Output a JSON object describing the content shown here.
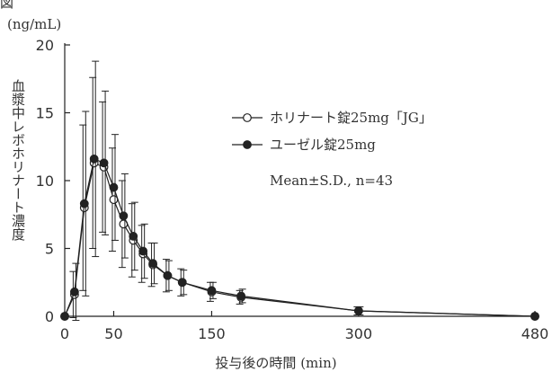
{
  "header": {
    "top_text": "図",
    "unit": "(ng/mL)"
  },
  "chart_data": {
    "type": "line",
    "ylabel": "血漿中レボホリナート濃度",
    "xlabel": "投与後の時間 (min)",
    "y_unit": "(ng/mL)",
    "xlim": [
      0,
      480
    ],
    "ylim": [
      0,
      20
    ],
    "x_ticks": [
      0,
      50,
      150,
      300,
      480
    ],
    "y_ticks": [
      0,
      5,
      10,
      15,
      20
    ],
    "legend_position": "upper-right",
    "grid": false,
    "series": [
      {
        "name": "ホリナート錠25mg「JG」",
        "marker": "open-circle",
        "color": "#222222",
        "points": [
          {
            "x": 0,
            "y": 0.0,
            "sd": 0.0
          },
          {
            "x": 10,
            "y": 1.6,
            "sd": 1.7
          },
          {
            "x": 20,
            "y": 8.0,
            "sd": 6.1
          },
          {
            "x": 30,
            "y": 11.3,
            "sd": 6.3
          },
          {
            "x": 40,
            "y": 11.0,
            "sd": 4.8
          },
          {
            "x": 50,
            "y": 8.6,
            "sd": 3.8
          },
          {
            "x": 60,
            "y": 6.8,
            "sd": 3.2
          },
          {
            "x": 70,
            "y": 5.6,
            "sd": 2.7
          },
          {
            "x": 80,
            "y": 4.6,
            "sd": 2.1
          },
          {
            "x": 90,
            "y": 3.8,
            "sd": 1.6
          },
          {
            "x": 105,
            "y": 3.0,
            "sd": 1.2
          },
          {
            "x": 120,
            "y": 2.5,
            "sd": 1.0
          },
          {
            "x": 150,
            "y": 1.8,
            "sd": 0.7
          },
          {
            "x": 180,
            "y": 1.4,
            "sd": 0.5
          },
          {
            "x": 300,
            "y": 0.4,
            "sd": 0.3
          },
          {
            "x": 480,
            "y": 0.0,
            "sd": 0.0
          }
        ]
      },
      {
        "name": "ユーゼル錠25mg",
        "marker": "filled-circle",
        "color": "#222222",
        "points": [
          {
            "x": 0,
            "y": 0.0,
            "sd": 0.0
          },
          {
            "x": 10,
            "y": 1.8,
            "sd": 2.1
          },
          {
            "x": 20,
            "y": 8.3,
            "sd": 6.8
          },
          {
            "x": 30,
            "y": 11.6,
            "sd": 7.2
          },
          {
            "x": 40,
            "y": 11.3,
            "sd": 5.3
          },
          {
            "x": 50,
            "y": 9.5,
            "sd": 3.9
          },
          {
            "x": 60,
            "y": 7.4,
            "sd": 3.1
          },
          {
            "x": 70,
            "y": 5.9,
            "sd": 2.5
          },
          {
            "x": 80,
            "y": 4.8,
            "sd": 2.0
          },
          {
            "x": 90,
            "y": 3.9,
            "sd": 1.5
          },
          {
            "x": 105,
            "y": 3.0,
            "sd": 1.1
          },
          {
            "x": 120,
            "y": 2.5,
            "sd": 0.9
          },
          {
            "x": 150,
            "y": 1.9,
            "sd": 0.6
          },
          {
            "x": 180,
            "y": 1.5,
            "sd": 0.5
          },
          {
            "x": 300,
            "y": 0.4,
            "sd": 0.3
          },
          {
            "x": 480,
            "y": 0.0,
            "sd": 0.0
          }
        ]
      }
    ],
    "annotations": [
      "Mean±S.D., n=43"
    ]
  }
}
